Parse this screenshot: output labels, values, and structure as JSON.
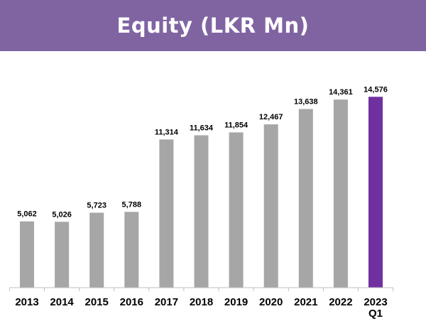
{
  "chart_data": {
    "type": "bar",
    "title": "Equity (LKR Mn)",
    "categories": [
      "2013",
      "2014",
      "2015",
      "2016",
      "2017",
      "2018",
      "2019",
      "2020",
      "2021",
      "2022",
      "2023 Q1"
    ],
    "values": [
      5062,
      5026,
      5723,
      5788,
      11314,
      11634,
      11854,
      12467,
      13638,
      14361,
      14576
    ],
    "value_labels": [
      "5,062",
      "5,026",
      "5,723",
      "5,788",
      "11,314",
      "11,634",
      "11,854",
      "12,467",
      "13,638",
      "14,361",
      "14,576"
    ],
    "xlabel": "",
    "ylabel": "",
    "ylim": [
      0,
      16000
    ],
    "grid": false,
    "legend": "none",
    "colors": {
      "bar": "#a6a6a6",
      "highlight": "#7030a0",
      "title_banner": "#8064a2",
      "axis": "#bfbfbf"
    },
    "highlight_index": 10
  }
}
